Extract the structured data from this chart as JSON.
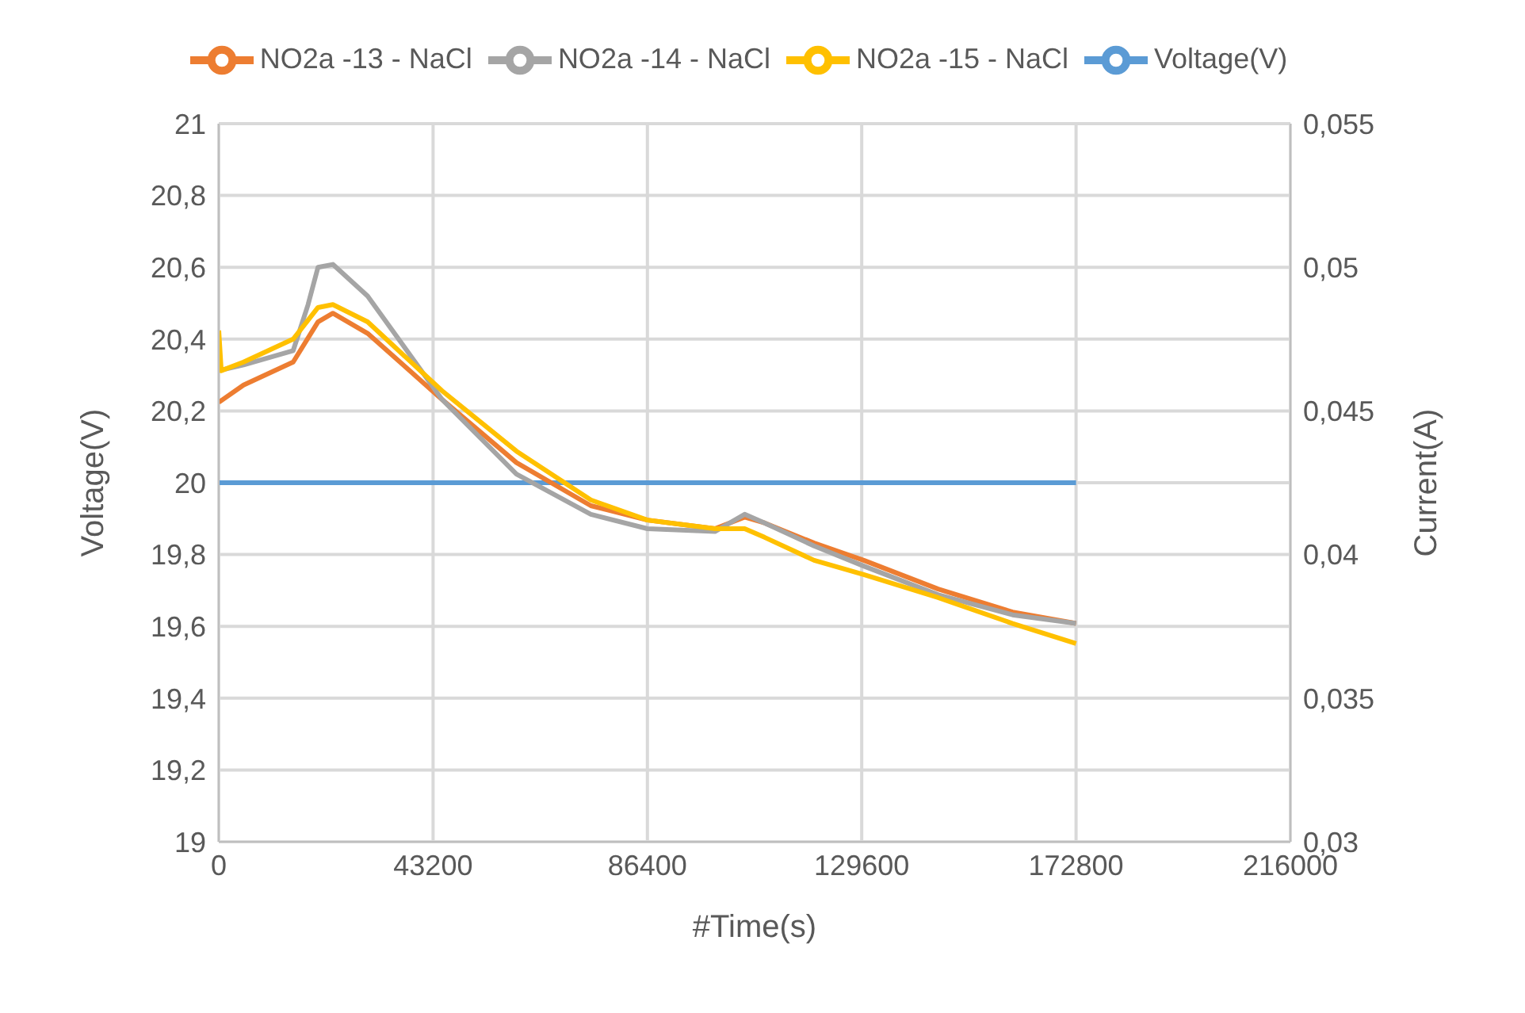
{
  "chart_data": {
    "type": "line",
    "xlabel": "#Time(s)",
    "ylabel": "Voltage(V)",
    "y2label": "Current(A)",
    "xlim": [
      0,
      216000
    ],
    "xticks": [
      0,
      43200,
      86400,
      129600,
      172800,
      216000
    ],
    "ylim": [
      19,
      21
    ],
    "yticks": [
      19,
      {
        "value": 19.2,
        "label": "19,2"
      },
      {
        "value": 19.4,
        "label": "19,4"
      },
      {
        "value": 19.6,
        "label": "19,6"
      },
      {
        "value": 19.8,
        "label": "19,8"
      },
      20,
      {
        "value": 20.2,
        "label": "20,2"
      },
      {
        "value": 20.4,
        "label": "20,4"
      },
      {
        "value": 20.6,
        "label": "20,6"
      },
      {
        "value": 20.8,
        "label": "20,8"
      },
      21
    ],
    "y2lim": [
      0.03,
      0.055
    ],
    "y2ticks": [
      {
        "value": 0.03,
        "label": "0,03"
      },
      {
        "value": 0.035,
        "label": "0,035"
      },
      {
        "value": 0.04,
        "label": "0,04"
      },
      {
        "value": 0.045,
        "label": "0,045"
      },
      {
        "value": 0.05,
        "label": "0,05"
      },
      {
        "value": 0.055,
        "label": "0,055"
      }
    ],
    "grid": true,
    "legend": "top",
    "marker": "none",
    "line_style": "solid",
    "series": [
      {
        "name": "Voltage(V)",
        "color": "#5b9bd5",
        "x": [
          0,
          172800
        ],
        "values": [
          20,
          20
        ]
      },
      {
        "name": "NO2a -13 - NaCl",
        "color": "#ed7d31",
        "axis": "y2",
        "x": [
          0,
          5000,
          15000,
          20000,
          23000,
          30000,
          45000,
          60000,
          75000,
          86400,
          100000,
          106000,
          110000,
          120000,
          130000,
          145000,
          160000,
          172800
        ],
        "values": [
          0.0453,
          0.0459,
          0.0467,
          0.0481,
          0.0484,
          0.0477,
          0.0454,
          0.0432,
          0.0417,
          0.0412,
          0.0409,
          0.0413,
          0.0411,
          0.0404,
          0.0398,
          0.0388,
          0.038,
          0.0376
        ]
      },
      {
        "name": "NO2a -14 - NaCl",
        "color": "#a5a5a5",
        "axis": "y2",
        "x": [
          0,
          5000,
          15000,
          18000,
          20000,
          23000,
          30000,
          45000,
          60000,
          75000,
          86400,
          100000,
          106000,
          110000,
          120000,
          130000,
          145000,
          160000,
          172800
        ],
        "values": [
          0.0464,
          0.0466,
          0.0471,
          0.0487,
          0.05,
          0.0501,
          0.049,
          0.0454,
          0.0428,
          0.0414,
          0.0409,
          0.0408,
          0.0414,
          0.0411,
          0.0403,
          0.0396,
          0.0386,
          0.0379,
          0.0376
        ]
      },
      {
        "name": "NO2a -15 - NaCl",
        "color": "#ffc000",
        "axis": "y2",
        "x": [
          0,
          500,
          5000,
          15000,
          20000,
          23000,
          30000,
          45000,
          60000,
          75000,
          86400,
          100000,
          106000,
          110000,
          120000,
          130000,
          145000,
          160000,
          172800
        ],
        "values": [
          0.0478,
          0.0464,
          0.0467,
          0.0475,
          0.0486,
          0.0487,
          0.0481,
          0.0457,
          0.0436,
          0.0419,
          0.0412,
          0.0409,
          0.0409,
          0.0406,
          0.0398,
          0.0393,
          0.0385,
          0.0376,
          0.0369
        ]
      }
    ]
  }
}
